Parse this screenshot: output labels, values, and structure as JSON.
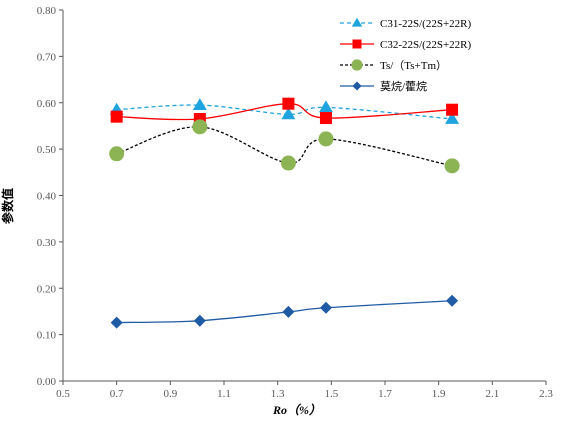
{
  "chart_data": {
    "type": "line",
    "xlabel": "Ro（%）",
    "ylabel": "参数值",
    "xlim": [
      0.5,
      2.3
    ],
    "ylim": [
      0.0,
      0.8
    ],
    "x_ticks": [
      "0.5",
      "0.7",
      "0.9",
      "1.1",
      "1.3",
      "1.5",
      "1.7",
      "1.9",
      "2.1",
      "2.3"
    ],
    "y_ticks": [
      "0.00",
      "0.10",
      "0.20",
      "0.30",
      "0.40",
      "0.50",
      "0.60",
      "0.70",
      "0.80"
    ],
    "grid": false,
    "legend_position": "top-right",
    "x": [
      0.7,
      1.01,
      1.34,
      1.48,
      1.95
    ],
    "series": [
      {
        "name": "C31-22S/(22S+22R)",
        "values": [
          0.585,
          0.595,
          0.575,
          0.59,
          0.565
        ],
        "color": "#1fa4df",
        "marker": "triangle",
        "line": "dashed-smooth"
      },
      {
        "name": "C32-22S/(22S+22R)",
        "values": [
          0.57,
          0.565,
          0.598,
          0.567,
          0.585
        ],
        "color": "#ff0000",
        "marker": "square",
        "line": "solid-smooth"
      },
      {
        "name": "Ts/（Ts+Tm）",
        "values": [
          0.49,
          0.548,
          0.47,
          0.522,
          0.464
        ],
        "color": "#8db454",
        "marker": "circle",
        "line": "dashed-smooth-black"
      },
      {
        "name": "莫烷/藿烷",
        "values": [
          0.126,
          0.13,
          0.149,
          0.158,
          0.173
        ],
        "color": "#1f5aa5",
        "marker": "diamond",
        "line": "solid-smooth"
      }
    ]
  }
}
